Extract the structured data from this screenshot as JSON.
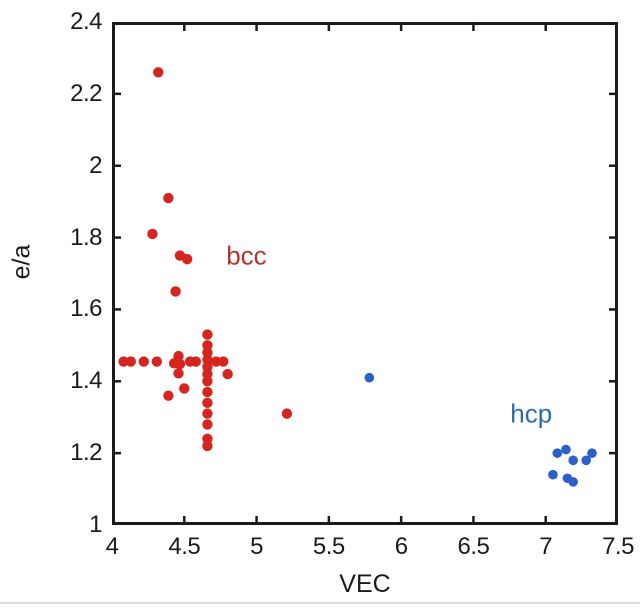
{
  "figure": {
    "background": "#ffffff",
    "frame_color": "#1b1b1b"
  },
  "chart_data": {
    "type": "scatter",
    "title": "",
    "xlabel": "VEC",
    "ylabel": "e/a",
    "xlim": [
      4,
      7.5
    ],
    "ylim": [
      1,
      2.4
    ],
    "grid": false,
    "frame": true,
    "legend_position": "none",
    "x_ticks": {
      "values": [
        4,
        4.5,
        5,
        5.5,
        6,
        6.5,
        7,
        7.5
      ],
      "labels": [
        "4",
        "4.5",
        "5",
        "5.5",
        "6",
        "6.5",
        "7",
        "7.5"
      ]
    },
    "y_ticks": {
      "values": [
        1,
        1.2,
        1.4,
        1.6,
        1.8,
        2,
        2.2,
        2.4
      ],
      "labels": [
        "1",
        "1.2",
        "1.4",
        "1.6",
        "1.8",
        "2",
        "2.2",
        "2.4"
      ]
    },
    "series": [
      {
        "name": "bcc",
        "color": "#d6251f",
        "marker": "circle",
        "points": [
          [
            4.32,
            2.26
          ],
          [
            4.39,
            1.91
          ],
          [
            4.28,
            1.81
          ],
          [
            4.47,
            1.75
          ],
          [
            4.52,
            1.74
          ],
          [
            4.44,
            1.65
          ],
          [
            4.08,
            1.455
          ],
          [
            4.13,
            1.455
          ],
          [
            4.22,
            1.455
          ],
          [
            4.31,
            1.455
          ],
          [
            4.46,
            1.47
          ],
          [
            4.43,
            1.45
          ],
          [
            4.47,
            1.448
          ],
          [
            4.46,
            1.422
          ],
          [
            4.54,
            1.455
          ],
          [
            4.58,
            1.455
          ],
          [
            4.66,
            1.53
          ],
          [
            4.66,
            1.5
          ],
          [
            4.66,
            1.48
          ],
          [
            4.66,
            1.46
          ],
          [
            4.66,
            1.44
          ],
          [
            4.66,
            1.42
          ],
          [
            4.66,
            1.4
          ],
          [
            4.66,
            1.37
          ],
          [
            4.66,
            1.34
          ],
          [
            4.66,
            1.31
          ],
          [
            4.66,
            1.28
          ],
          [
            4.66,
            1.24
          ],
          [
            4.66,
            1.22
          ],
          [
            4.72,
            1.455
          ],
          [
            4.77,
            1.455
          ],
          [
            4.8,
            1.42
          ],
          [
            4.39,
            1.36
          ],
          [
            4.5,
            1.38
          ],
          [
            5.21,
            1.31
          ]
        ]
      },
      {
        "name": "hcp",
        "color": "#2a60c8",
        "marker": "circle",
        "points": [
          [
            5.78,
            1.41
          ],
          [
            7.05,
            1.14
          ],
          [
            7.08,
            1.2
          ],
          [
            7.14,
            1.21
          ],
          [
            7.15,
            1.13
          ],
          [
            7.19,
            1.18
          ],
          [
            7.19,
            1.12
          ],
          [
            7.28,
            1.18
          ],
          [
            7.32,
            1.2
          ]
        ]
      }
    ],
    "annotations": [
      {
        "text": "bcc",
        "x": 4.93,
        "y": 1.75,
        "color": "#b5342b"
      },
      {
        "text": "hcp",
        "x": 6.9,
        "y": 1.31,
        "color": "#2d6ca8"
      }
    ]
  }
}
